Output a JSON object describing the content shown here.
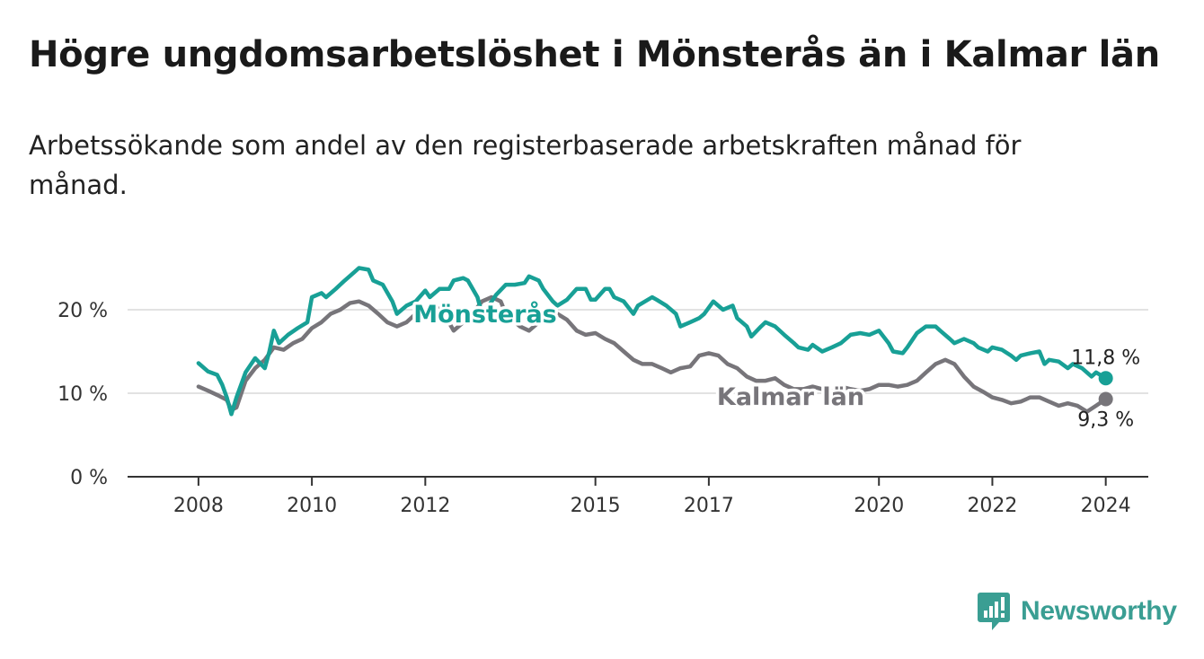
{
  "header": {
    "title": "Högre ungdomsarbetslöshet i Mönsterås än i Kalmar län",
    "subtitle": "Arbetssökande som andel av den registerbaserade arbetskraften månad för månad."
  },
  "brand": {
    "name": "Newsworthy",
    "icon": "newsworthy-logo-icon",
    "color": "#3a9e93"
  },
  "chart_data": {
    "type": "line",
    "title": "Högre ungdomsarbetslöshet i Mönsterås än i Kalmar län",
    "subtitle": "Arbetssökande som andel av den registerbaserade arbetskraften månad för månad.",
    "x_ticks": [
      {
        "value": 2008,
        "label": "2008"
      },
      {
        "value": 2010,
        "label": "2010"
      },
      {
        "value": 2012,
        "label": "2012"
      },
      {
        "value": 2015,
        "label": "2015"
      },
      {
        "value": 2017,
        "label": "2017"
      },
      {
        "value": 2020,
        "label": "2020"
      },
      {
        "value": 2022,
        "label": "2022"
      },
      {
        "value": 2024,
        "label": "2024"
      }
    ],
    "y_ticks": [
      {
        "value": 0,
        "label": "0 %"
      },
      {
        "value": 10,
        "label": "10 %"
      },
      {
        "value": 20,
        "label": "20 %"
      }
    ],
    "xlim": [
      2006.75,
      2024.75
    ],
    "ylim": [
      0,
      25
    ],
    "grid": true,
    "series": [
      {
        "name": "Mönsterås",
        "color": "#18a096",
        "end_label": "11,8 %",
        "points": [
          [
            2008.0,
            13.6
          ],
          [
            2008.17,
            12.6
          ],
          [
            2008.33,
            12.2
          ],
          [
            2008.42,
            11.0
          ],
          [
            2008.5,
            9.5
          ],
          [
            2008.58,
            7.5
          ],
          [
            2008.67,
            9.5
          ],
          [
            2008.83,
            12.5
          ],
          [
            2009.0,
            14.2
          ],
          [
            2009.17,
            13.0
          ],
          [
            2009.25,
            15.0
          ],
          [
            2009.33,
            17.5
          ],
          [
            2009.42,
            16.0
          ],
          [
            2009.58,
            17.0
          ],
          [
            2009.75,
            17.8
          ],
          [
            2009.92,
            18.5
          ],
          [
            2010.0,
            21.5
          ],
          [
            2010.17,
            22.0
          ],
          [
            2010.25,
            21.5
          ],
          [
            2010.42,
            22.5
          ],
          [
            2010.58,
            23.5
          ],
          [
            2010.75,
            24.5
          ],
          [
            2010.83,
            25.0
          ],
          [
            2011.0,
            24.8
          ],
          [
            2011.08,
            23.5
          ],
          [
            2011.25,
            23.0
          ],
          [
            2011.42,
            21.0
          ],
          [
            2011.5,
            19.5
          ],
          [
            2011.67,
            20.5
          ],
          [
            2011.83,
            21.0
          ],
          [
            2012.0,
            22.3
          ],
          [
            2012.08,
            21.5
          ],
          [
            2012.25,
            22.5
          ],
          [
            2012.42,
            22.5
          ],
          [
            2012.5,
            23.5
          ],
          [
            2012.67,
            23.8
          ],
          [
            2012.75,
            23.5
          ],
          [
            2012.92,
            21.5
          ],
          [
            2013.0,
            19.5
          ],
          [
            2013.17,
            21.0
          ],
          [
            2013.25,
            21.8
          ],
          [
            2013.42,
            23.0
          ],
          [
            2013.58,
            23.0
          ],
          [
            2013.75,
            23.2
          ],
          [
            2013.83,
            24.0
          ],
          [
            2014.0,
            23.5
          ],
          [
            2014.08,
            22.5
          ],
          [
            2014.25,
            21.0
          ],
          [
            2014.33,
            20.5
          ],
          [
            2014.5,
            21.2
          ],
          [
            2014.67,
            22.5
          ],
          [
            2014.83,
            22.5
          ],
          [
            2014.92,
            21.2
          ],
          [
            2015.0,
            21.2
          ],
          [
            2015.17,
            22.5
          ],
          [
            2015.25,
            22.5
          ],
          [
            2015.33,
            21.5
          ],
          [
            2015.5,
            21.0
          ],
          [
            2015.67,
            19.5
          ],
          [
            2015.75,
            20.5
          ],
          [
            2016.0,
            21.5
          ],
          [
            2016.08,
            21.2
          ],
          [
            2016.25,
            20.5
          ],
          [
            2016.42,
            19.5
          ],
          [
            2016.5,
            18.0
          ],
          [
            2016.67,
            18.5
          ],
          [
            2016.83,
            19.0
          ],
          [
            2016.92,
            19.5
          ],
          [
            2017.08,
            21.0
          ],
          [
            2017.25,
            20.0
          ],
          [
            2017.42,
            20.5
          ],
          [
            2017.5,
            19.0
          ],
          [
            2017.67,
            18.0
          ],
          [
            2017.75,
            16.8
          ],
          [
            2017.92,
            18.0
          ],
          [
            2018.0,
            18.5
          ],
          [
            2018.17,
            18.0
          ],
          [
            2018.33,
            17.0
          ],
          [
            2018.5,
            16.0
          ],
          [
            2018.58,
            15.5
          ],
          [
            2018.75,
            15.2
          ],
          [
            2018.83,
            15.8
          ],
          [
            2019.0,
            15.0
          ],
          [
            2019.17,
            15.5
          ],
          [
            2019.33,
            16.0
          ],
          [
            2019.5,
            17.0
          ],
          [
            2019.67,
            17.2
          ],
          [
            2019.83,
            17.0
          ],
          [
            2020.0,
            17.5
          ],
          [
            2020.17,
            16.0
          ],
          [
            2020.25,
            15.0
          ],
          [
            2020.42,
            14.8
          ],
          [
            2020.5,
            15.5
          ],
          [
            2020.67,
            17.2
          ],
          [
            2020.83,
            18.0
          ],
          [
            2021.0,
            18.0
          ],
          [
            2021.08,
            17.5
          ],
          [
            2021.25,
            16.5
          ],
          [
            2021.33,
            16.0
          ],
          [
            2021.5,
            16.5
          ],
          [
            2021.67,
            16.0
          ],
          [
            2021.75,
            15.5
          ],
          [
            2021.92,
            15.0
          ],
          [
            2022.0,
            15.5
          ],
          [
            2022.17,
            15.2
          ],
          [
            2022.33,
            14.5
          ],
          [
            2022.42,
            14.0
          ],
          [
            2022.5,
            14.5
          ],
          [
            2022.67,
            14.8
          ],
          [
            2022.83,
            15.0
          ],
          [
            2022.92,
            13.5
          ],
          [
            2023.0,
            14.0
          ],
          [
            2023.17,
            13.8
          ],
          [
            2023.33,
            13.0
          ],
          [
            2023.42,
            13.5
          ],
          [
            2023.58,
            13.0
          ],
          [
            2023.75,
            12.0
          ],
          [
            2023.83,
            12.5
          ],
          [
            2024.0,
            11.8
          ]
        ]
      },
      {
        "name": "Kalmar län",
        "color": "#77757a",
        "end_label": "9,3 %",
        "points": [
          [
            2008.0,
            10.8
          ],
          [
            2008.17,
            10.3
          ],
          [
            2008.33,
            9.8
          ],
          [
            2008.5,
            9.2
          ],
          [
            2008.58,
            8.0
          ],
          [
            2008.67,
            8.3
          ],
          [
            2008.83,
            11.5
          ],
          [
            2009.0,
            13.0
          ],
          [
            2009.17,
            14.0
          ],
          [
            2009.33,
            15.5
          ],
          [
            2009.5,
            15.2
          ],
          [
            2009.67,
            16.0
          ],
          [
            2009.83,
            16.5
          ],
          [
            2010.0,
            17.8
          ],
          [
            2010.17,
            18.5
          ],
          [
            2010.33,
            19.5
          ],
          [
            2010.5,
            20.0
          ],
          [
            2010.67,
            20.8
          ],
          [
            2010.83,
            21.0
          ],
          [
            2011.0,
            20.5
          ],
          [
            2011.17,
            19.5
          ],
          [
            2011.33,
            18.5
          ],
          [
            2011.5,
            18.0
          ],
          [
            2011.67,
            18.5
          ],
          [
            2011.83,
            19.5
          ],
          [
            2012.0,
            19.5
          ],
          [
            2012.17,
            20.5
          ],
          [
            2012.33,
            19.5
          ],
          [
            2012.5,
            17.5
          ],
          [
            2012.67,
            18.5
          ],
          [
            2012.83,
            19.5
          ],
          [
            2013.0,
            21.0
          ],
          [
            2013.17,
            21.5
          ],
          [
            2013.33,
            21.0
          ],
          [
            2013.42,
            19.5
          ],
          [
            2013.5,
            19.0
          ],
          [
            2013.67,
            18.0
          ],
          [
            2013.83,
            17.5
          ],
          [
            2014.0,
            18.5
          ],
          [
            2014.17,
            19.0
          ],
          [
            2014.33,
            19.5
          ],
          [
            2014.5,
            18.8
          ],
          [
            2014.67,
            17.5
          ],
          [
            2014.83,
            17.0
          ],
          [
            2015.0,
            17.2
          ],
          [
            2015.17,
            16.5
          ],
          [
            2015.33,
            16.0
          ],
          [
            2015.5,
            15.0
          ],
          [
            2015.67,
            14.0
          ],
          [
            2015.83,
            13.5
          ],
          [
            2016.0,
            13.5
          ],
          [
            2016.17,
            13.0
          ],
          [
            2016.33,
            12.5
          ],
          [
            2016.5,
            13.0
          ],
          [
            2016.67,
            13.2
          ],
          [
            2016.83,
            14.5
          ],
          [
            2017.0,
            14.8
          ],
          [
            2017.17,
            14.5
          ],
          [
            2017.33,
            13.5
          ],
          [
            2017.5,
            13.0
          ],
          [
            2017.67,
            12.0
          ],
          [
            2017.83,
            11.5
          ],
          [
            2018.0,
            11.5
          ],
          [
            2018.17,
            11.8
          ],
          [
            2018.33,
            11.0
          ],
          [
            2018.5,
            10.5
          ],
          [
            2018.67,
            10.5
          ],
          [
            2018.83,
            10.8
          ],
          [
            2019.0,
            10.5
          ],
          [
            2019.17,
            10.2
          ],
          [
            2019.33,
            10.8
          ],
          [
            2019.5,
            10.5
          ],
          [
            2019.67,
            10.3
          ],
          [
            2019.83,
            10.5
          ],
          [
            2020.0,
            11.0
          ],
          [
            2020.17,
            11.0
          ],
          [
            2020.33,
            10.8
          ],
          [
            2020.5,
            11.0
          ],
          [
            2020.67,
            11.5
          ],
          [
            2020.83,
            12.5
          ],
          [
            2021.0,
            13.5
          ],
          [
            2021.17,
            14.0
          ],
          [
            2021.33,
            13.5
          ],
          [
            2021.5,
            12.0
          ],
          [
            2021.67,
            10.8
          ],
          [
            2021.83,
            10.2
          ],
          [
            2022.0,
            9.5
          ],
          [
            2022.17,
            9.2
          ],
          [
            2022.33,
            8.8
          ],
          [
            2022.5,
            9.0
          ],
          [
            2022.67,
            9.5
          ],
          [
            2022.83,
            9.5
          ],
          [
            2023.0,
            9.0
          ],
          [
            2023.17,
            8.5
          ],
          [
            2023.33,
            8.8
          ],
          [
            2023.5,
            8.5
          ],
          [
            2023.67,
            7.8
          ],
          [
            2023.83,
            8.5
          ],
          [
            2024.0,
            9.3
          ]
        ]
      }
    ]
  }
}
